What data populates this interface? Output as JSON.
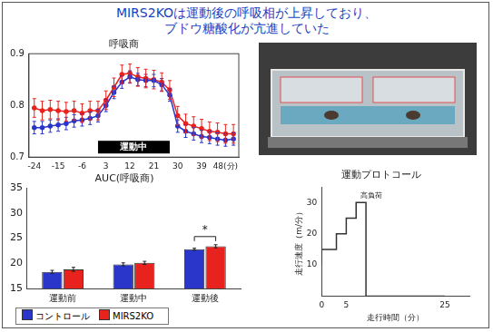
{
  "title": [
    "MIRS2KOは運動後の呼吸相が上昇しており、",
    "ブドウ糖酸化が亢進していた"
  ],
  "chart_data": [
    {
      "type": "line",
      "title": "呼吸商",
      "x": [
        -24,
        -21,
        -18,
        -15,
        -12,
        -9,
        -6,
        -3,
        0,
        3,
        6,
        9,
        12,
        15,
        18,
        21,
        24,
        27,
        30,
        33,
        36,
        39,
        42,
        45,
        48,
        51
      ],
      "series": [
        {
          "name": "コントロール",
          "color": "#2a35c9",
          "marker": "circle",
          "values": [
            0.757,
            0.757,
            0.76,
            0.762,
            0.765,
            0.77,
            0.772,
            0.775,
            0.78,
            0.8,
            0.825,
            0.845,
            0.855,
            0.85,
            0.848,
            0.848,
            0.84,
            0.82,
            0.76,
            0.75,
            0.745,
            0.74,
            0.738,
            0.735,
            0.733,
            0.735
          ],
          "errors": [
            0.012,
            0.012,
            0.012,
            0.012,
            0.012,
            0.012,
            0.012,
            0.012,
            0.012,
            0.012,
            0.012,
            0.012,
            0.012,
            0.012,
            0.012,
            0.012,
            0.012,
            0.012,
            0.012,
            0.012,
            0.012,
            0.012,
            0.012,
            0.012,
            0.012,
            0.012
          ]
        },
        {
          "name": "MIRS2KO",
          "color": "#e8231d",
          "marker": "circle",
          "values": [
            0.795,
            0.79,
            0.792,
            0.79,
            0.788,
            0.79,
            0.785,
            0.79,
            0.79,
            0.81,
            0.835,
            0.86,
            0.862,
            0.855,
            0.852,
            0.85,
            0.845,
            0.83,
            0.78,
            0.765,
            0.76,
            0.755,
            0.75,
            0.748,
            0.745,
            0.745
          ],
          "errors": [
            0.018,
            0.018,
            0.018,
            0.018,
            0.018,
            0.018,
            0.018,
            0.018,
            0.018,
            0.018,
            0.018,
            0.018,
            0.018,
            0.018,
            0.018,
            0.018,
            0.018,
            0.018,
            0.018,
            0.018,
            0.018,
            0.018,
            0.018,
            0.018,
            0.018,
            0.018
          ]
        }
      ],
      "xlim": [
        -26,
        53
      ],
      "xticks": [
        -24,
        -15,
        -6,
        3,
        12,
        21,
        30,
        39,
        {
          "value": 48,
          "label": "48(分)"
        }
      ],
      "ylim": [
        0.7,
        0.9
      ],
      "yticks": [
        0.7,
        0.8,
        0.9
      ],
      "grid": false,
      "annotations": [
        {
          "text": "運動中",
          "x": [
            0,
            27
          ]
        }
      ]
    },
    {
      "type": "bar",
      "title": "AUC(呼吸商)",
      "categories": [
        "運動前",
        "運動中",
        "運動後"
      ],
      "series": [
        {
          "name": "コントロール",
          "color": "#2a35c9",
          "values": [
            18.3,
            19.8,
            22.8
          ],
          "errors": [
            0.3,
            0.3,
            0.2
          ]
        },
        {
          "name": "MIRS2KO",
          "color": "#e8231d",
          "values": [
            18.8,
            20.1,
            23.4
          ],
          "errors": [
            0.4,
            0.3,
            0.3
          ]
        }
      ],
      "ylim": [
        15,
        35
      ],
      "yticks": [
        15,
        20,
        25,
        30,
        35
      ],
      "grid": false,
      "legend": "bottom",
      "annotations": [
        {
          "text": "*",
          "category": "運動後"
        }
      ]
    },
    {
      "type": "line",
      "title": "運動プロトコール",
      "line_style": "stepped",
      "x_label": "走行時間（分）",
      "y_label": "走行速度（m/分）",
      "x": [
        0,
        3,
        5,
        7,
        9,
        25
      ],
      "values": [
        10,
        15,
        20,
        25,
        30,
        0
      ],
      "color": "#333333",
      "xlim": [
        0,
        30
      ],
      "xticks": [
        0,
        5,
        25
      ],
      "ylim": [
        0,
        35
      ],
      "yticks": [
        10,
        20,
        30
      ],
      "grid": false,
      "annotations": [
        {
          "text": "高負荷"
        }
      ]
    }
  ]
}
